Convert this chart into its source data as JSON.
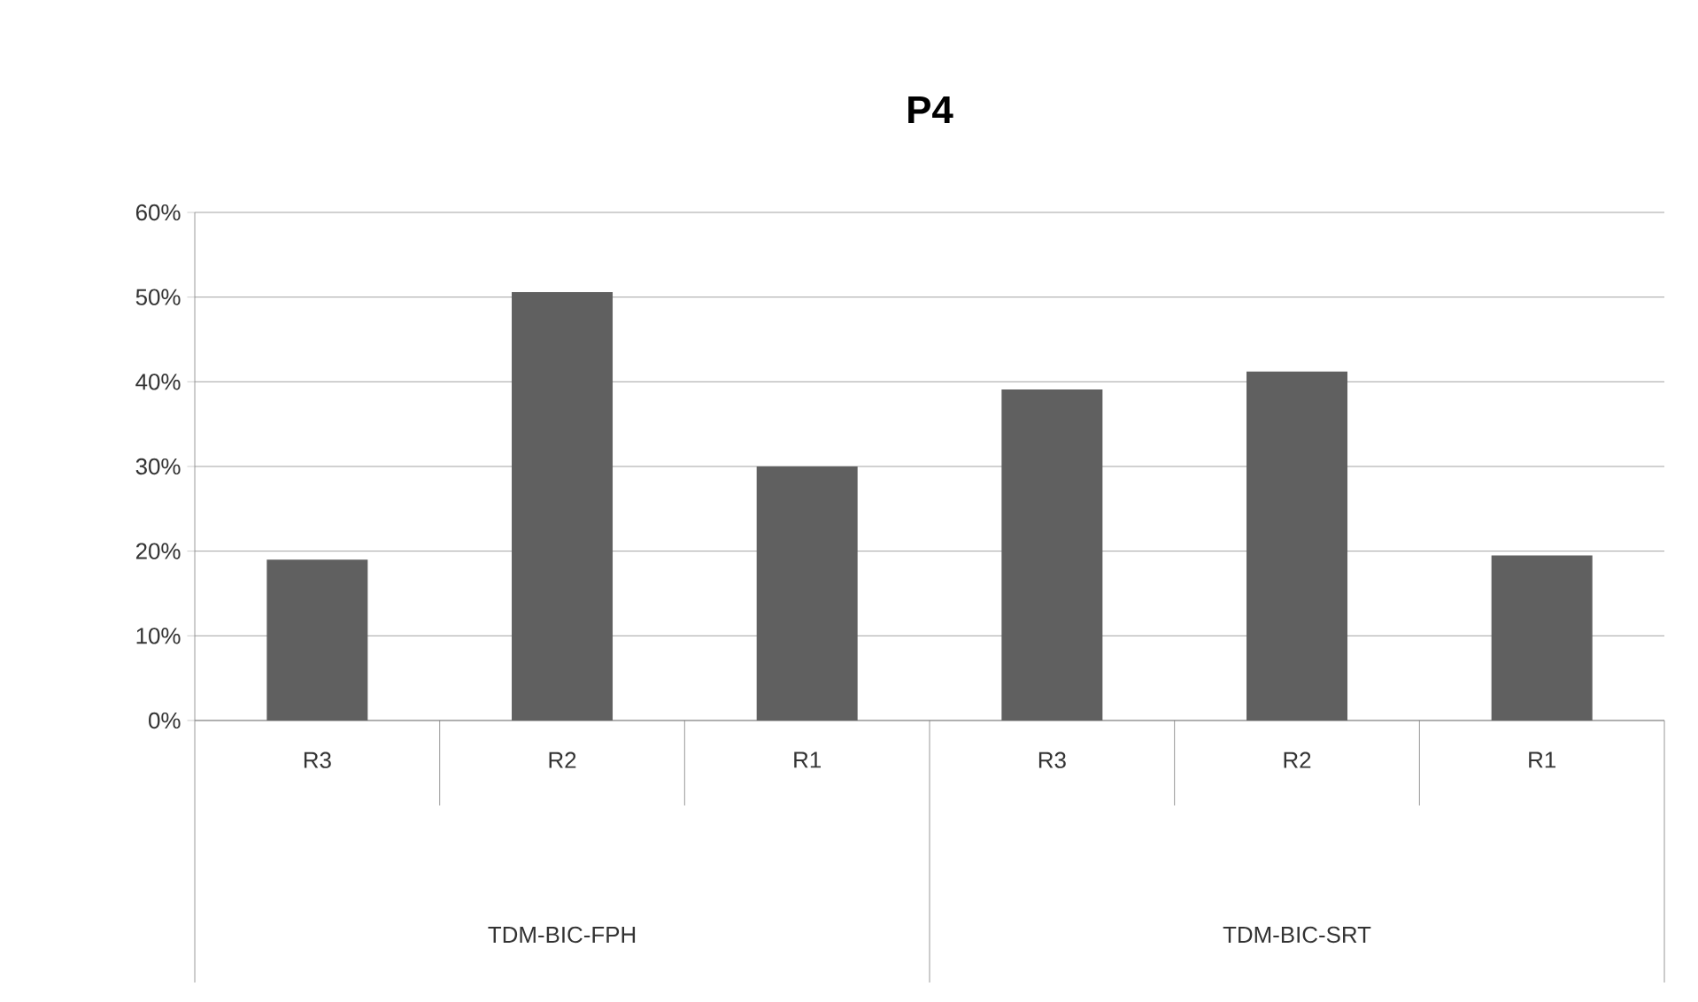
{
  "chart_data": {
    "type": "bar",
    "title": "P4",
    "categories": [
      "R3",
      "R2",
      "R1",
      "R3",
      "R2",
      "R1"
    ],
    "values": [
      19.0,
      50.6,
      30.0,
      39.1,
      41.2,
      19.5
    ],
    "color": "#606060",
    "ylim": [
      0,
      60
    ],
    "yticks": [
      {
        "value": 0,
        "label": "0%"
      },
      {
        "value": 10,
        "label": "10%"
      },
      {
        "value": 20,
        "label": "20%"
      },
      {
        "value": 30,
        "label": "30%"
      },
      {
        "value": 40,
        "label": "40%"
      },
      {
        "value": 50,
        "label": "50%"
      },
      {
        "value": 60,
        "label": "60%"
      }
    ],
    "grid": "y",
    "annotations": [
      "TDM-BIC-FPH",
      "TDM-BIC-SRT"
    ]
  }
}
